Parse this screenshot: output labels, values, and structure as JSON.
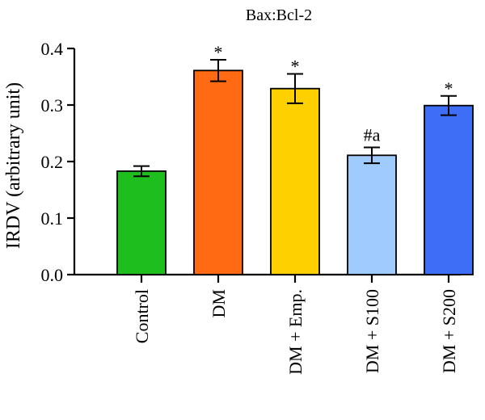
{
  "chart_data": {
    "type": "bar",
    "title": "Bax:Bcl-2",
    "xlabel": "",
    "ylabel": "IRDV (arbitrary unit)",
    "ylim": [
      0,
      0.4
    ],
    "yticks": [
      "0.0",
      "0.1",
      "0.2",
      "0.3",
      "0.4"
    ],
    "ytick_values": [
      0.0,
      0.1,
      0.2,
      0.3,
      0.4
    ],
    "categories": [
      "Control",
      "DM",
      "DM + Emp.",
      "DM + S100",
      "DM + S200"
    ],
    "values": [
      0.183,
      0.361,
      0.329,
      0.211,
      0.299
    ],
    "errors": [
      0.009,
      0.019,
      0.026,
      0.014,
      0.017
    ],
    "annotations": [
      "",
      "*",
      "*",
      "#a",
      "*"
    ],
    "colors": [
      "#1fbe1f",
      "#ff6a13",
      "#ffd000",
      "#9fcbff",
      "#3d6ef5"
    ],
    "grid": false
  }
}
